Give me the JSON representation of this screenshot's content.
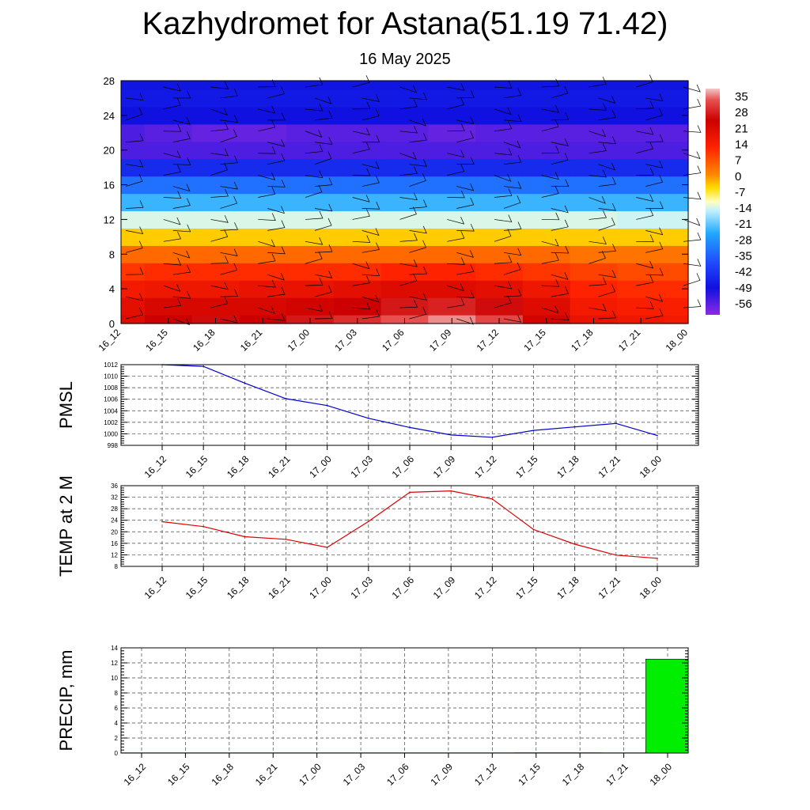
{
  "header": {
    "title": "Kazhydromet for Astana(51.19 71.42)",
    "subtitle": "16 May 2025"
  },
  "time_labels": [
    "16_12",
    "16_15",
    "16_18",
    "16_21",
    "17_00",
    "17_03",
    "17_06",
    "17_09",
    "17_12",
    "17_15",
    "17_18",
    "17_21",
    "18_00"
  ],
  "chart_data": [
    {
      "type": "heatmap",
      "title": "",
      "x": [
        "16_12",
        "16_15",
        "16_18",
        "16_21",
        "17_00",
        "17_03",
        "17_06",
        "17_09",
        "17_12",
        "17_15",
        "17_18",
        "17_21",
        "18_00"
      ],
      "y_ticks": [
        0,
        4,
        8,
        12,
        16,
        20,
        24,
        28
      ],
      "ylim": [
        0,
        28
      ],
      "colorbar_labels": [
        "35",
        "28",
        "21",
        "14",
        "7",
        "0",
        "-7",
        "-14",
        "-21",
        "-28",
        "-35",
        "-42",
        "-49",
        "-56"
      ],
      "colorbar_range": [
        -60,
        38
      ],
      "levels_y": [
        0,
        2,
        4,
        6,
        8,
        10,
        12,
        14,
        16,
        18,
        20,
        22,
        24,
        26,
        28
      ],
      "z": [
        [
          24,
          27,
          28,
          27,
          29,
          31,
          34,
          36,
          33,
          26,
          22,
          21,
          20
        ],
        [
          23,
          25,
          25,
          25,
          26,
          27,
          29,
          30,
          28,
          24,
          20,
          19,
          19
        ],
        [
          20,
          21,
          21,
          22,
          22,
          23,
          24,
          24,
          23,
          21,
          18,
          17,
          17
        ],
        [
          16,
          17,
          17,
          17,
          17,
          17,
          18,
          18,
          17,
          16,
          15,
          14,
          14
        ],
        [
          11,
          11,
          11,
          11,
          11,
          11,
          11,
          11,
          11,
          11,
          10,
          10,
          10
        ],
        [
          4,
          4,
          4,
          4,
          4,
          4,
          4,
          4,
          4,
          4,
          4,
          4,
          4
        ],
        [
          -6,
          -6,
          -6,
          -6,
          -6,
          -6,
          -6,
          -6,
          -6,
          -6,
          -6,
          -7,
          -7
        ],
        [
          -18,
          -18,
          -18,
          -18,
          -18,
          -18,
          -18,
          -18,
          -18,
          -18,
          -18,
          -18,
          -18
        ],
        [
          -30,
          -30,
          -30,
          -30,
          -30,
          -30,
          -30,
          -30,
          -30,
          -30,
          -30,
          -30,
          -30
        ],
        [
          -44,
          -44,
          -44,
          -44,
          -44,
          -44,
          -44,
          -44,
          -44,
          -44,
          -44,
          -44,
          -44
        ],
        [
          -55,
          -55,
          -55,
          -55,
          -55,
          -55,
          -55,
          -55,
          -55,
          -55,
          -55,
          -55,
          -55
        ],
        [
          -55,
          -56,
          -57,
          -57,
          -56,
          -56,
          -56,
          -57,
          -56,
          -56,
          -56,
          -56,
          -56
        ],
        [
          -50,
          -50,
          -50,
          -50,
          -50,
          -50,
          -50,
          -50,
          -50,
          -50,
          -50,
          -50,
          -50
        ],
        [
          -48,
          -48,
          -48,
          -48,
          -48,
          -48,
          -48,
          -48,
          -48,
          -48,
          -48,
          -48,
          -48
        ],
        [
          -49,
          -49,
          -49,
          -49,
          -49,
          -49,
          -49,
          -49,
          -49,
          -49,
          -49,
          -49,
          -49
        ]
      ]
    },
    {
      "type": "line",
      "ylabel": "PMSL",
      "x": [
        "16_12",
        "16_15",
        "16_18",
        "16_21",
        "17_00",
        "17_03",
        "17_06",
        "17_09",
        "17_12",
        "17_15",
        "17_18",
        "17_21",
        "18_00"
      ],
      "values": [
        1012,
        1011.7,
        1008.8,
        1006.1,
        1004.9,
        1002.7,
        1001.1,
        999.8,
        999.4,
        1000.6,
        1001.2,
        1001.8,
        999.7
      ],
      "ylim": [
        998,
        1012
      ],
      "yticks": [
        998,
        1000,
        1002,
        1004,
        1006,
        1008,
        1010,
        1012
      ],
      "color": "#0000cc",
      "grid": true
    },
    {
      "type": "line",
      "ylabel": "TEMP at 2 M",
      "x": [
        "16_12",
        "16_15",
        "16_18",
        "16_21",
        "17_00",
        "17_03",
        "17_06",
        "17_09",
        "17_12",
        "17_15",
        "17_18",
        "17_21",
        "18_00"
      ],
      "values": [
        23.5,
        21.8,
        18.3,
        17.4,
        14.6,
        23.6,
        33.7,
        34.2,
        31.4,
        20.8,
        15.7,
        11.9,
        10.8
      ],
      "ylim": [
        8,
        36
      ],
      "yticks": [
        8,
        12,
        16,
        20,
        24,
        28,
        32,
        36
      ],
      "color": "#dd0000",
      "grid": true
    },
    {
      "type": "bar",
      "ylabel": "PRECIP, mm",
      "categories": [
        "16_12",
        "16_15",
        "16_18",
        "16_21",
        "17_00",
        "17_03",
        "17_06",
        "17_09",
        "17_12",
        "17_15",
        "17_18",
        "17_21",
        "18_00"
      ],
      "values": [
        0,
        0,
        0,
        0,
        0,
        0,
        0,
        0,
        0,
        0.1,
        0.1,
        0,
        12.5
      ],
      "ylim": [
        0,
        14
      ],
      "yticks": [
        0,
        2,
        4,
        6,
        8,
        10,
        12,
        14
      ],
      "color": "#00ee00",
      "grid": true
    }
  ]
}
